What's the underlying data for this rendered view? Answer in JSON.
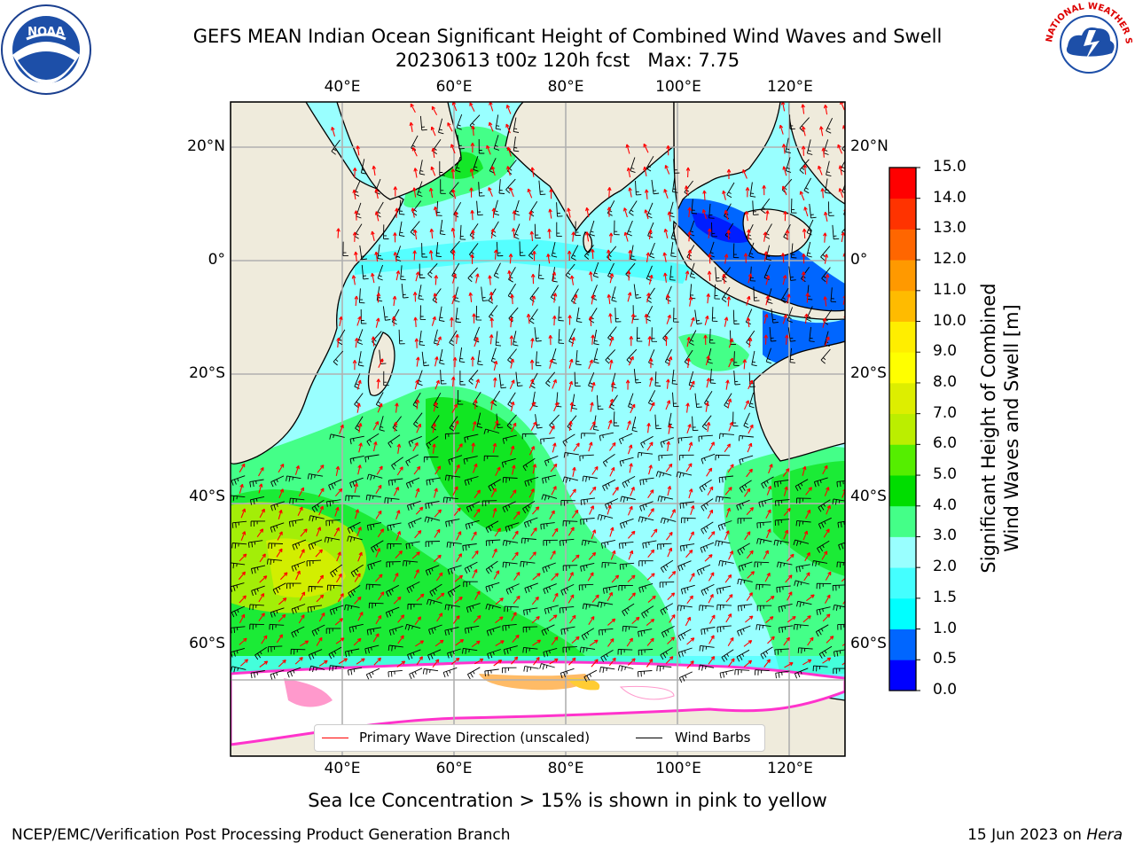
{
  "title": {
    "line1": "GEFS MEAN Indian Ocean Significant Height of Combined Wind Waves and Swell",
    "line2": "20230613 t00z 120h fcst   Max: 7.75"
  },
  "logos": {
    "left": {
      "name": "noaa-logo",
      "text": "NOAA"
    },
    "right": {
      "name": "national-weather-service-logo",
      "text": "NATIONAL WEATHER SERVICE"
    }
  },
  "map": {
    "lon_range": [
      20,
      130
    ],
    "lat_range": [
      -86,
      28
    ],
    "projection": "mercator",
    "lon_ticks": [
      "40°E",
      "60°E",
      "80°E",
      "100°E",
      "120°E"
    ],
    "lat_ticks": [
      "20°N",
      "0°",
      "20°S",
      "40°S",
      "60°S"
    ],
    "grid": true,
    "land_color": "#efebdc",
    "ice_color": "#ffffff"
  },
  "colorbar": {
    "title_line1": "Significant Height of Combined",
    "title_line2": "Wind Waves and Swell [m]",
    "levels": [
      "0.0",
      "0.5",
      "1.0",
      "1.5",
      "2.0",
      "3.0",
      "4.0",
      "5.0",
      "6.0",
      "7.0",
      "8.0",
      "9.0",
      "10.0",
      "11.0",
      "12.0",
      "13.0",
      "14.0",
      "15.0"
    ],
    "colors": [
      "#0000ff",
      "#0066ff",
      "#00ffff",
      "#44ffff",
      "#99ffff",
      "#44ff88",
      "#00dd00",
      "#55ee00",
      "#bbee00",
      "#ddee00",
      "#ffff00",
      "#ffee00",
      "#ffbb00",
      "#ff9900",
      "#ff6600",
      "#ff3300",
      "#ff0000"
    ],
    "units": "m"
  },
  "legend": {
    "wave_direction": "Primary Wave Direction (unscaled)",
    "wind_barbs": "Wind Barbs",
    "wave_color": "#ff0000",
    "barb_color": "#000000"
  },
  "caption": "Sea Ice Concentration > 15% is shown in pink to yellow",
  "footer": {
    "left": "NCEP/EMC/Verification Post Processing Product Generation Branch",
    "right_prefix": "15 Jun 2023 on ",
    "right_machine": "Hera"
  }
}
